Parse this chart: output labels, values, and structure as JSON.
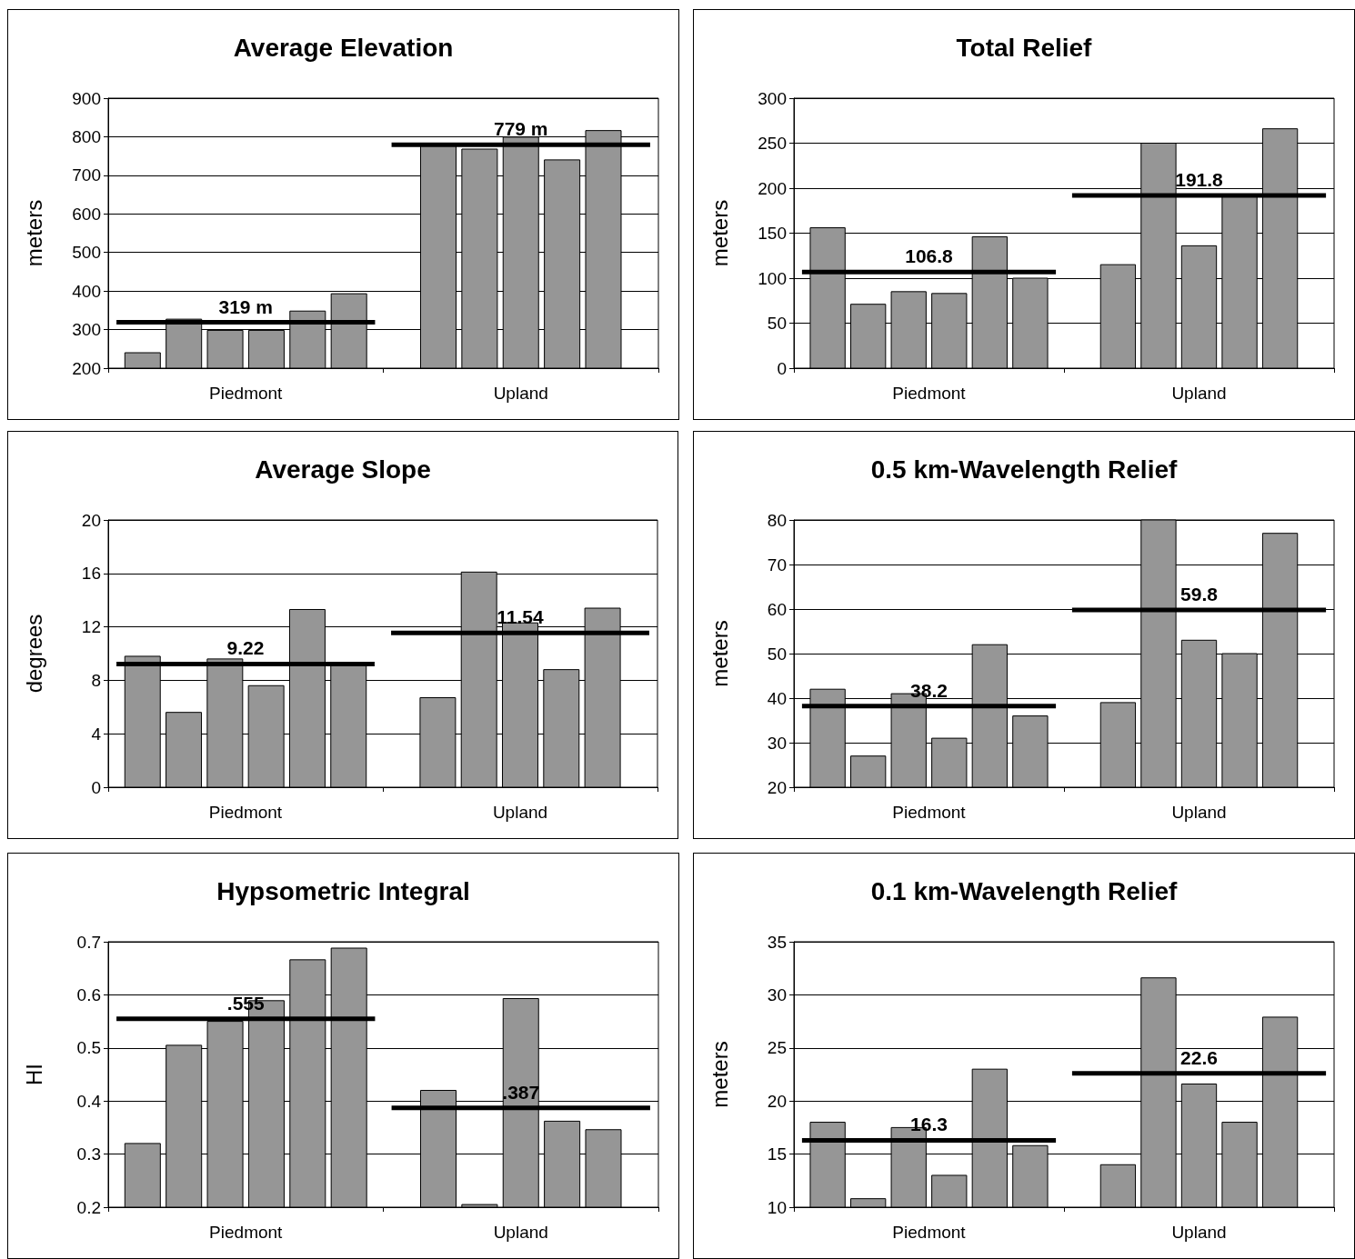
{
  "chart_data": [
    {
      "type": "bar",
      "title": "Average Elevation",
      "ylabel": "meters",
      "categories": [
        "Piedmont",
        "Upland"
      ],
      "ylim": [
        200,
        900
      ],
      "yticks": [
        200,
        300,
        400,
        500,
        600,
        700,
        800,
        900
      ],
      "grid": "y",
      "series": [
        {
          "color": "#969696",
          "values": [
            240,
            780
          ]
        },
        {
          "color": "#969696",
          "values": [
            327,
            768
          ]
        },
        {
          "color": "#969696",
          "values": [
            298,
            799
          ]
        },
        {
          "color": "#969696",
          "values": [
            298,
            740
          ]
        },
        {
          "color": "#969696",
          "values": [
            348,
            816
          ]
        },
        {
          "color": "#969696",
          "values": [
            393,
            null
          ]
        }
      ],
      "ref_lines": [
        {
          "axis": "y",
          "value": 319,
          "label": "319 m",
          "color": "#000000"
        },
        {
          "axis": "y",
          "value": 779,
          "label": "779 m",
          "color": "#000000"
        }
      ]
    },
    {
      "type": "bar",
      "title": "Total Relief",
      "ylabel": "meters",
      "categories": [
        "Piedmont",
        "Upland"
      ],
      "ylim": [
        0,
        300
      ],
      "yticks": [
        0,
        50,
        100,
        150,
        200,
        250,
        300
      ],
      "grid": "y",
      "series": [
        {
          "color": "#969696",
          "values": [
            156,
            115
          ]
        },
        {
          "color": "#969696",
          "values": [
            71,
            250
          ]
        },
        {
          "color": "#969696",
          "values": [
            85,
            136
          ]
        },
        {
          "color": "#969696",
          "values": [
            83,
            193
          ]
        },
        {
          "color": "#969696",
          "values": [
            146,
            266
          ]
        },
        {
          "color": "#969696",
          "values": [
            100,
            null
          ]
        }
      ],
      "ref_lines": [
        {
          "axis": "y",
          "value": 106.8,
          "label": "106.8",
          "color": "#000000"
        },
        {
          "axis": "y",
          "value": 191.8,
          "label": "191.8",
          "color": "#000000"
        }
      ]
    },
    {
      "type": "bar",
      "title": "Average Slope",
      "ylabel": "degrees",
      "categories": [
        "Piedmont",
        "Upland"
      ],
      "ylim": [
        0,
        20
      ],
      "yticks": [
        0,
        4,
        8,
        12,
        16,
        20
      ],
      "grid": "y",
      "series": [
        {
          "color": "#969696",
          "values": [
            9.8,
            6.7
          ]
        },
        {
          "color": "#969696",
          "values": [
            5.6,
            16.1
          ]
        },
        {
          "color": "#969696",
          "values": [
            9.6,
            12.3
          ]
        },
        {
          "color": "#969696",
          "values": [
            7.6,
            8.8
          ]
        },
        {
          "color": "#969696",
          "values": [
            13.3,
            13.4
          ]
        },
        {
          "color": "#969696",
          "values": [
            9.1,
            null
          ]
        }
      ],
      "ref_lines": [
        {
          "axis": "y",
          "value": 9.22,
          "label": "9.22",
          "color": "#000000"
        },
        {
          "axis": "y",
          "value": 11.54,
          "label": "11.54",
          "color": "#000000"
        }
      ]
    },
    {
      "type": "bar",
      "title": "0.5 km-Wavelength Relief",
      "ylabel": "meters",
      "categories": [
        "Piedmont",
        "Upland"
      ],
      "ylim": [
        20,
        80
      ],
      "yticks": [
        20,
        30,
        40,
        50,
        60,
        70,
        80
      ],
      "grid": "y",
      "series": [
        {
          "color": "#969696",
          "values": [
            42,
            39
          ]
        },
        {
          "color": "#969696",
          "values": [
            27,
            80
          ]
        },
        {
          "color": "#969696",
          "values": [
            41,
            53
          ]
        },
        {
          "color": "#969696",
          "values": [
            31,
            50
          ]
        },
        {
          "color": "#969696",
          "values": [
            52,
            77
          ]
        },
        {
          "color": "#969696",
          "values": [
            36,
            null
          ]
        }
      ],
      "ref_lines": [
        {
          "axis": "y",
          "value": 38.2,
          "label": "38.2",
          "color": "#000000"
        },
        {
          "axis": "y",
          "value": 59.8,
          "label": "59.8",
          "color": "#000000"
        }
      ]
    },
    {
      "type": "bar",
      "title": "Hypsometric Integral",
      "ylabel": "HI",
      "categories": [
        "Piedmont",
        "Upland"
      ],
      "ylim": [
        0.2,
        0.7
      ],
      "yticks": [
        0.2,
        0.3,
        0.4,
        0.5,
        0.6,
        0.7
      ],
      "grid": "y",
      "series": [
        {
          "color": "#969696",
          "values": [
            0.32,
            0.42
          ]
        },
        {
          "color": "#969696",
          "values": [
            0.505,
            0.205
          ]
        },
        {
          "color": "#969696",
          "values": [
            0.55,
            0.593
          ]
        },
        {
          "color": "#969696",
          "values": [
            0.589,
            0.362
          ]
        },
        {
          "color": "#969696",
          "values": [
            0.666,
            0.346
          ]
        },
        {
          "color": "#969696",
          "values": [
            0.688,
            null
          ]
        }
      ],
      "ref_lines": [
        {
          "axis": "y",
          "value": 0.555,
          "label": ".555",
          "color": "#000000"
        },
        {
          "axis": "y",
          "value": 0.387,
          "label": ".387",
          "color": "#000000"
        }
      ]
    },
    {
      "type": "bar",
      "title": "0.1 km-Wavelength Relief",
      "ylabel": "meters",
      "categories": [
        "Piedmont",
        "Upland"
      ],
      "ylim": [
        10,
        35
      ],
      "yticks": [
        10,
        15,
        20,
        25,
        30,
        35
      ],
      "grid": "y",
      "series": [
        {
          "color": "#969696",
          "values": [
            18,
            14
          ]
        },
        {
          "color": "#969696",
          "values": [
            10.8,
            31.6
          ]
        },
        {
          "color": "#969696",
          "values": [
            17.5,
            21.6
          ]
        },
        {
          "color": "#969696",
          "values": [
            13,
            18
          ]
        },
        {
          "color": "#969696",
          "values": [
            23,
            27.9
          ]
        },
        {
          "color": "#969696",
          "values": [
            15.8,
            null
          ]
        }
      ],
      "ref_lines": [
        {
          "axis": "y",
          "value": 16.3,
          "label": "16.3",
          "color": "#000000"
        },
        {
          "axis": "y",
          "value": 22.6,
          "label": "22.6",
          "color": "#000000"
        }
      ]
    }
  ]
}
